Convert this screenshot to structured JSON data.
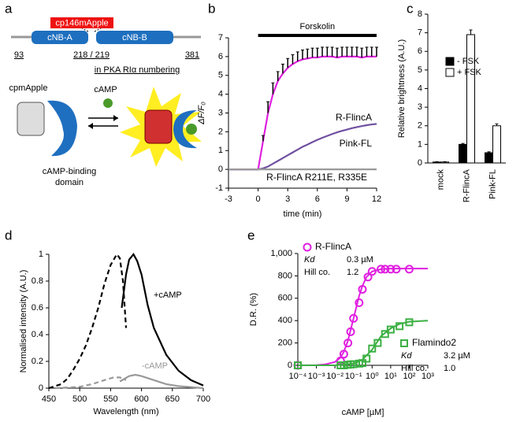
{
  "panel_a": {
    "letter": "a",
    "insert": "cp146mApple",
    "domain_a": "cNB-A",
    "domain_b": "cNB-B",
    "start": "93",
    "junction": "218 / 219",
    "end": "381",
    "numbering": "in PKA RIα numbering",
    "fluorophore": "cpmApple",
    "ligand": "cAMP",
    "binding_domain": [
      "cAMP-binding",
      "domain"
    ]
  },
  "chart_data": [
    {
      "type": "line",
      "letter": "b",
      "ylabel": "ΔF/F₀",
      "xlabel": "time (min)",
      "x": [
        -3,
        -2.5,
        -2,
        -1.5,
        -1,
        -0.5,
        0,
        0.5,
        1,
        1.5,
        2,
        2.5,
        3,
        3.5,
        4,
        4.5,
        5,
        5.5,
        6,
        6.5,
        7,
        7.5,
        8,
        8.5,
        9,
        9.5,
        10,
        10.5,
        11,
        11.5,
        12
      ],
      "xlim": [
        -3,
        12
      ],
      "xticks": [
        -3,
        0,
        3,
        6,
        9,
        12
      ],
      "ylim": [
        -1,
        7
      ],
      "yticks": [
        -1,
        0,
        1,
        2,
        3,
        4,
        5,
        6,
        7
      ],
      "forskolin": {
        "label": "Forskolin",
        "xrange": [
          0,
          12
        ]
      },
      "series": [
        {
          "name": "R-FlincA",
          "color": "#e020e0",
          "values": [
            0,
            0,
            0,
            0,
            0,
            0,
            0,
            1.5,
            3.0,
            4.0,
            4.7,
            5.1,
            5.4,
            5.6,
            5.75,
            5.85,
            5.9,
            5.95,
            5.95,
            6.0,
            6.0,
            6.0,
            5.95,
            6.0,
            6.0,
            6.0,
            6.0,
            5.95,
            6.0,
            6.0,
            6.0
          ],
          "errors": [
            null,
            null,
            null,
            null,
            null,
            null,
            null,
            0.3,
            0.6,
            0.6,
            0.5,
            0.5,
            0.5,
            0.5,
            0.5,
            0.5,
            0.5,
            0.5,
            0.5,
            0.5,
            0.5,
            0.5,
            0.5,
            0.5,
            0.5,
            0.5,
            0.5,
            0.5,
            0.5,
            0.5,
            0.5
          ]
        },
        {
          "name": "Pink-FL",
          "color": "#7050a0",
          "values": [
            0,
            0,
            0,
            0,
            0,
            0,
            0,
            0.05,
            0.15,
            0.3,
            0.45,
            0.6,
            0.75,
            0.9,
            1.05,
            1.2,
            1.32,
            1.45,
            1.57,
            1.68,
            1.78,
            1.88,
            1.97,
            2.05,
            2.12,
            2.19,
            2.25,
            2.3,
            2.35,
            2.39,
            2.42
          ]
        },
        {
          "name": "R-FlincA R211E, R335E",
          "color": "#999999",
          "values": [
            0,
            0,
            0,
            0,
            0,
            0,
            0,
            0,
            0,
            0,
            0,
            0,
            0,
            0,
            0,
            0,
            0,
            0,
            0,
            0,
            0,
            0,
            0,
            0,
            0,
            0,
            0,
            0,
            0,
            0,
            0
          ]
        }
      ]
    },
    {
      "type": "bar",
      "letter": "c",
      "ylabel": "Relative brightness (A.U.)",
      "categories": [
        "mock",
        "R-FlincA",
        "Pink-FL"
      ],
      "ylim": [
        0,
        8
      ],
      "yticks": [
        0,
        1,
        2,
        3,
        4,
        5,
        6,
        7,
        8
      ],
      "series": [
        {
          "name": "- FSK",
          "color": "#000000",
          "values": [
            0.05,
            1.0,
            0.55
          ],
          "errors": [
            0.02,
            0.05,
            0.05
          ]
        },
        {
          "name": "+ FSK",
          "color": "#ffffff",
          "values": [
            0.05,
            6.9,
            2.0
          ],
          "errors": [
            0.02,
            0.25,
            0.1
          ]
        }
      ]
    },
    {
      "type": "line",
      "letter": "d",
      "ylabel": "Normalised intensity (A.U.)",
      "xlabel": "Wavelength (nm)",
      "xlim": [
        450,
        700
      ],
      "xticks": [
        450,
        500,
        550,
        600,
        650,
        700
      ],
      "ylim": [
        0,
        1
      ],
      "yticks": [
        0,
        0.2,
        0.4,
        0.6,
        0.8,
        1
      ],
      "annotations": [
        "+cAMP",
        "-cAMP"
      ],
      "series": [
        {
          "color": "#000000",
          "dash": true,
          "x": [
            450,
            470,
            480,
            490,
            500,
            510,
            520,
            530,
            540,
            550,
            560,
            565,
            570,
            575
          ],
          "values": [
            0,
            0.03,
            0.07,
            0.14,
            0.22,
            0.32,
            0.45,
            0.6,
            0.78,
            0.92,
            1.0,
            0.97,
            0.8,
            0.45
          ]
        },
        {
          "color": "#000000",
          "dash": false,
          "x": [
            568,
            575,
            580,
            587,
            593,
            600,
            610,
            620,
            640,
            660,
            680,
            700
          ],
          "values": [
            0.6,
            0.85,
            0.96,
            1.0,
            0.95,
            0.85,
            0.62,
            0.45,
            0.25,
            0.13,
            0.06,
            0.02
          ]
        },
        {
          "color": "#999999",
          "dash": true,
          "x": [
            460,
            480,
            500,
            520,
            540,
            555,
            565,
            575
          ],
          "values": [
            0,
            0.005,
            0.01,
            0.03,
            0.06,
            0.08,
            0.08,
            0.06
          ]
        },
        {
          "color": "#999999",
          "dash": false,
          "x": [
            565,
            580,
            590,
            600,
            620,
            640,
            660,
            700
          ],
          "values": [
            0.05,
            0.09,
            0.1,
            0.09,
            0.06,
            0.03,
            0.015,
            0
          ]
        }
      ]
    },
    {
      "type": "scatter",
      "letter": "e",
      "ylabel": "D.R. (%)",
      "xlabel": "cAMP [µM]",
      "xlog": true,
      "xlim": [
        0.0001,
        1000
      ],
      "xticks": [
        {
          "value": 0.0001,
          "label": "10⁻⁴"
        },
        {
          "value": 0.001,
          "label": "10⁻³"
        },
        {
          "value": 0.01,
          "label": "10⁻²"
        },
        {
          "value": 0.1,
          "label": "10⁻¹"
        },
        {
          "value": 1,
          "label": "10⁰"
        },
        {
          "value": 10,
          "label": "10¹"
        },
        {
          "value": 100,
          "label": "10²"
        },
        {
          "value": 1000,
          "label": "10³"
        }
      ],
      "ylim": [
        0,
        1000
      ],
      "yticks": [
        0,
        200,
        400,
        600,
        800,
        {
          "value": 1000,
          "label": "1,000"
        }
      ],
      "kd_label": "Kd",
      "hill_label": "Hill co.",
      "series": [
        {
          "name": "R-FlincA",
          "color": "#e020e0",
          "marker": "circle",
          "kd": "0.3 µM",
          "hill": "1.2",
          "x": [
            0.0001,
            0.02,
            0.03,
            0.05,
            0.07,
            0.1,
            0.2,
            0.3,
            0.6,
            1,
            3,
            5,
            10,
            20,
            100
          ],
          "values": [
            0,
            40,
            100,
            200,
            300,
            420,
            560,
            680,
            790,
            840,
            860,
            860,
            860,
            860,
            860
          ],
          "fit_x": [
            0.0001,
            0.001,
            0.003,
            0.01,
            0.02,
            0.03,
            0.05,
            0.1,
            0.2,
            0.3,
            0.5,
            1,
            3,
            10,
            100,
            1000
          ],
          "fit_values": [
            0,
            2,
            8,
            30,
            70,
            120,
            220,
            420,
            620,
            710,
            790,
            840,
            860,
            865,
            865,
            865
          ]
        },
        {
          "name": "Flamindo2",
          "color": "#3cb043",
          "marker": "square",
          "kd": "3.2 µM",
          "hill": "1.0",
          "x": [
            0.0001,
            0.02,
            0.03,
            0.05,
            0.07,
            0.1,
            0.2,
            0.3,
            0.5,
            1,
            2,
            5,
            10,
            30,
            100
          ],
          "values": [
            0,
            0,
            0,
            5,
            8,
            10,
            15,
            20,
            60,
            150,
            200,
            280,
            320,
            350,
            385
          ],
          "fit_x": [
            0.0001,
            0.01,
            0.1,
            0.3,
            1,
            3,
            10,
            30,
            100,
            1000
          ],
          "fit_values": [
            0,
            0,
            15,
            50,
            140,
            260,
            330,
            370,
            390,
            400
          ]
        }
      ]
    }
  ]
}
